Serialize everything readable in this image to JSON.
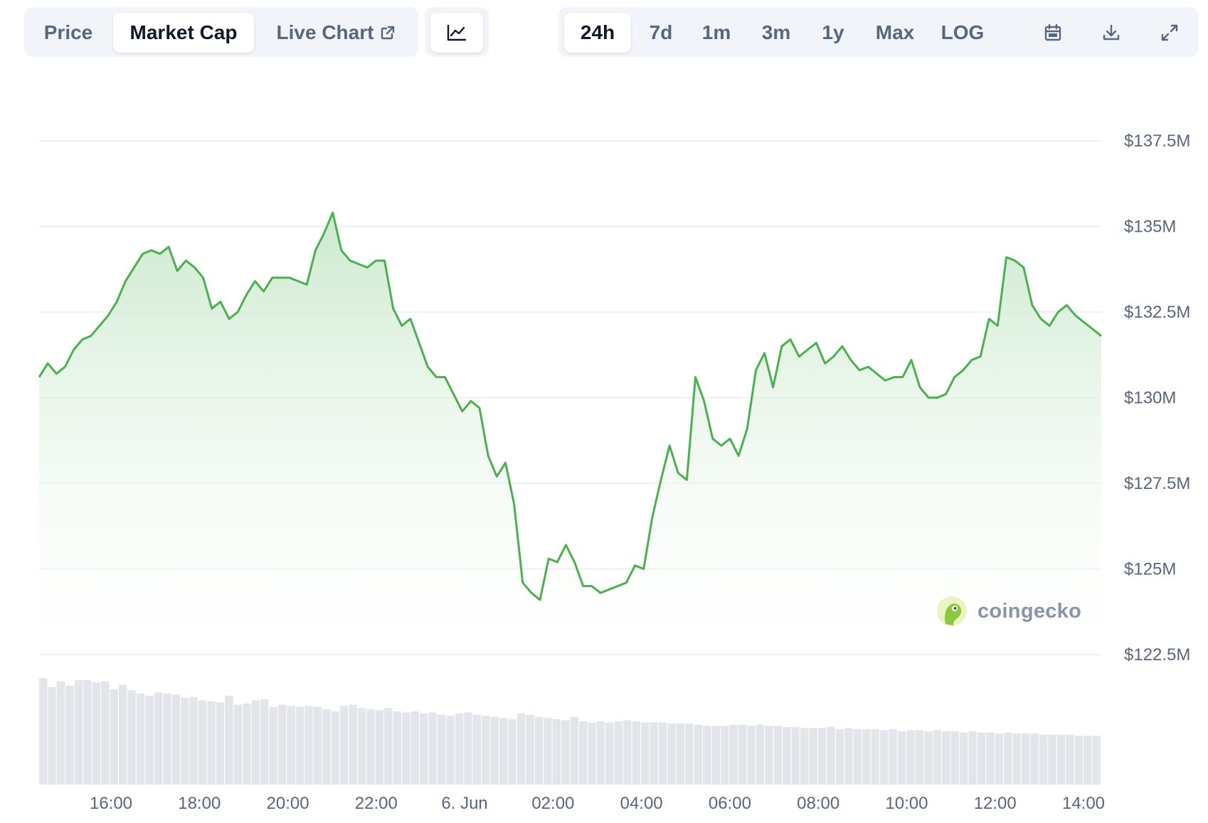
{
  "tabs": [
    {
      "label": "Price",
      "active": false
    },
    {
      "label": "Market Cap",
      "active": true
    },
    {
      "label": "Live Chart",
      "active": false
    }
  ],
  "ranges": [
    {
      "label": "24h",
      "active": true
    },
    {
      "label": "7d",
      "active": false
    },
    {
      "label": "1m",
      "active": false
    },
    {
      "label": "3m",
      "active": false
    },
    {
      "label": "1y",
      "active": false
    },
    {
      "label": "Max",
      "active": false
    },
    {
      "label": "LOG",
      "active": false
    }
  ],
  "icons": {
    "chart_type": "line-chart-icon",
    "live_chart": "external-link-icon",
    "calendar": "calendar-icon",
    "download": "download-icon",
    "fullscreen": "expand-icon"
  },
  "watermark": "coingecko",
  "colors": {
    "line": "#4caf50",
    "fill_top": "#c9e8cb",
    "grid": "#e8ebef",
    "volume": "#e2e5ea",
    "text_muted": "#58667e"
  },
  "chart_data": {
    "type": "area",
    "title": "",
    "xlabel": "",
    "ylabel": "",
    "ylim": [
      122.5,
      137.5
    ],
    "y_ticks": [
      {
        "value": 137.5,
        "label": "$137.5M"
      },
      {
        "value": 135,
        "label": "$135M"
      },
      {
        "value": 132.5,
        "label": "$132.5M"
      },
      {
        "value": 130,
        "label": "$130M"
      },
      {
        "value": 127.5,
        "label": "$127.5M"
      },
      {
        "value": 125,
        "label": "$125M"
      },
      {
        "value": 122.5,
        "label": "$122.5M"
      }
    ],
    "x_ticks": [
      "16:00",
      "18:00",
      "20:00",
      "22:00",
      "6. Jun",
      "02:00",
      "04:00",
      "06:00",
      "08:00",
      "10:00",
      "12:00",
      "14:00"
    ],
    "grid": true,
    "series": [
      {
        "values": [
          130.6,
          131.0,
          130.7,
          130.9,
          131.4,
          131.7,
          131.8,
          132.1,
          132.4,
          132.8,
          133.4,
          133.8,
          134.2,
          134.3,
          134.2,
          134.4,
          133.7,
          134.0,
          133.8,
          133.5,
          132.6,
          132.8,
          132.3,
          132.5,
          133.0,
          133.4,
          133.1,
          133.5,
          133.5,
          133.5,
          133.4,
          133.3,
          134.3,
          134.8,
          135.4,
          134.3,
          134.0,
          133.9,
          133.8,
          134.0,
          134.0,
          132.6,
          132.1,
          132.3,
          131.6,
          130.9,
          130.6,
          130.6,
          130.1,
          129.6,
          129.9,
          129.7,
          128.3,
          127.7,
          128.1,
          126.9,
          124.6,
          124.3,
          124.1,
          125.3,
          125.2,
          125.7,
          125.2,
          124.5,
          124.5,
          124.3,
          124.4,
          124.5,
          124.6,
          125.1,
          125.0,
          126.5,
          127.6,
          128.6,
          127.8,
          127.6,
          130.6,
          129.9,
          128.8,
          128.6,
          128.8,
          128.3,
          129.1,
          130.8,
          131.3,
          130.3,
          131.5,
          131.7,
          131.2,
          131.4,
          131.6,
          131.0,
          131.2,
          131.5,
          131.1,
          130.8,
          130.9,
          130.7,
          130.5,
          130.6,
          130.6,
          131.1,
          130.3,
          130.0,
          130.0,
          130.1,
          130.6,
          130.8,
          131.1,
          131.2,
          132.3,
          132.1,
          134.1,
          134.0,
          133.8,
          132.7,
          132.3,
          132.1,
          132.5,
          132.7,
          132.4,
          132.2,
          132.0,
          131.8
        ]
      }
    ],
    "volume": [
      9.6,
      8.8,
      9.3,
      8.9,
      9.4,
      9.4,
      9.2,
      9.3,
      8.6,
      9.0,
      8.5,
      8.2,
      8.0,
      8.3,
      8.2,
      8.1,
      7.8,
      7.9,
      7.6,
      7.5,
      7.4,
      8.0,
      7.2,
      7.3,
      7.6,
      7.7,
      7.0,
      7.2,
      7.1,
      7.0,
      7.1,
      7.0,
      6.8,
      6.6,
      7.1,
      7.2,
      6.9,
      6.8,
      6.7,
      6.9,
      6.6,
      6.5,
      6.6,
      6.4,
      6.5,
      6.3,
      6.2,
      6.4,
      6.5,
      6.3,
      6.2,
      6.1,
      6.0,
      5.9,
      6.4,
      6.3,
      6.1,
      6.0,
      5.9,
      5.8,
      6.1,
      5.7,
      5.6,
      5.7,
      5.6,
      5.7,
      5.8,
      5.7,
      5.6,
      5.6,
      5.6,
      5.5,
      5.5,
      5.5,
      5.4,
      5.3,
      5.3,
      5.3,
      5.4,
      5.4,
      5.3,
      5.4,
      5.3,
      5.3,
      5.2,
      5.2,
      5.1,
      5.1,
      5.1,
      5.2,
      5.0,
      5.1,
      5.0,
      5.0,
      5.0,
      4.9,
      5.0,
      4.8,
      4.9,
      4.9,
      4.8,
      4.9,
      4.8,
      4.8,
      4.7,
      4.8,
      4.7,
      4.7,
      4.6,
      4.7,
      4.6,
      4.6,
      4.6,
      4.5,
      4.5,
      4.5,
      4.5,
      4.4,
      4.4,
      4.4
    ]
  }
}
